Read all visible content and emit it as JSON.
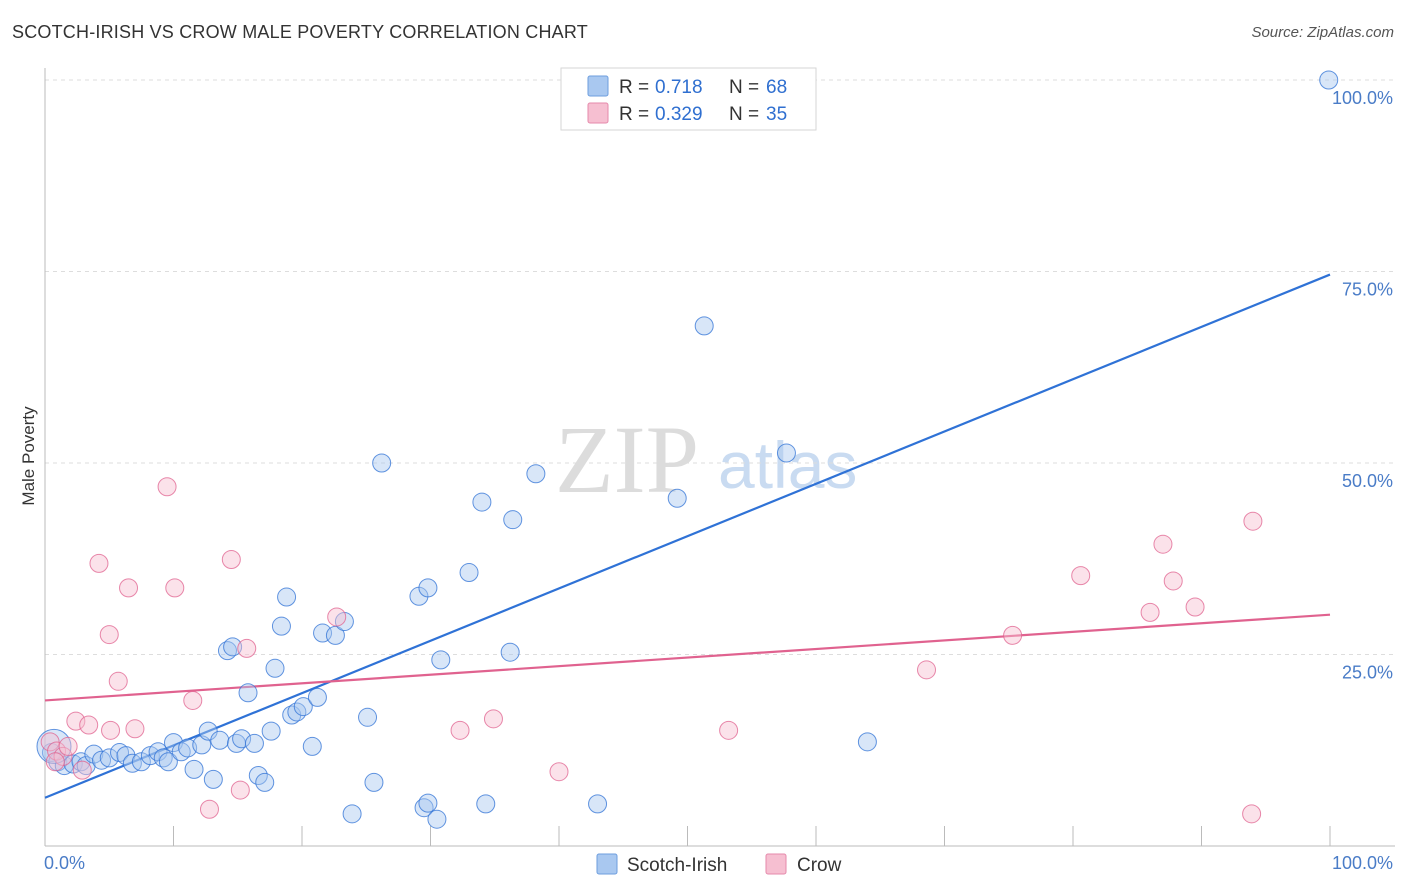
{
  "header": {
    "title": "SCOTCH-IRISH VS CROW MALE POVERTY CORRELATION CHART",
    "source": "Source: ZipAtlas.com"
  },
  "watermark": {
    "zip": "ZIP",
    "atlas": "atlas"
  },
  "legend": {
    "r_label": "R =",
    "n_label": "N =",
    "series": [
      {
        "name": "Scotch-Irish",
        "r": "0.718",
        "n": "68"
      },
      {
        "name": "Crow",
        "r": "0.329",
        "n": "35"
      }
    ]
  },
  "chart_data": {
    "type": "scatter",
    "title": "SCOTCH-IRISH VS CROW MALE POVERTY CORRELATION CHART",
    "xlabel": "",
    "ylabel": "Male Poverty",
    "xlim": [
      0,
      100
    ],
    "ylim": [
      0,
      100
    ],
    "x_tick_labels": [
      "0.0%",
      "100.0%"
    ],
    "y_ticks": [
      {
        "value": 25,
        "label": "25.0%"
      },
      {
        "value": 50,
        "label": "50.0%"
      },
      {
        "value": 75,
        "label": "75.0%"
      },
      {
        "value": 100,
        "label": "100.0%"
      }
    ],
    "grid": true,
    "legend_position": "top-center",
    "series": [
      {
        "name": "Scotch-Irish",
        "color": "#2f72d6",
        "fill": "#a9c8f0",
        "trend": {
          "x": [
            0,
            100
          ],
          "y": [
            6.3,
            74.6
          ]
        },
        "points": [
          [
            0.5,
            12.2
          ],
          [
            1.0,
            11.0
          ],
          [
            1.5,
            10.5
          ],
          [
            2.2,
            10.7
          ],
          [
            2.8,
            11.0
          ],
          [
            3.2,
            10.5
          ],
          [
            3.8,
            12.0
          ],
          [
            4.4,
            11.2
          ],
          [
            5.0,
            11.5
          ],
          [
            5.8,
            12.2
          ],
          [
            6.3,
            11.8
          ],
          [
            6.8,
            10.8
          ],
          [
            7.5,
            11.0
          ],
          [
            8.2,
            11.8
          ],
          [
            8.8,
            12.3
          ],
          [
            9.2,
            11.5
          ],
          [
            9.6,
            11.0
          ],
          [
            10.0,
            13.5
          ],
          [
            10.6,
            12.3
          ],
          [
            11.1,
            12.8
          ],
          [
            11.6,
            10.0
          ],
          [
            12.2,
            13.2
          ],
          [
            12.7,
            15.0
          ],
          [
            13.1,
            8.7
          ],
          [
            13.6,
            13.8
          ],
          [
            14.2,
            25.5
          ],
          [
            14.6,
            26.0
          ],
          [
            14.9,
            13.4
          ],
          [
            15.3,
            14.0
          ],
          [
            15.8,
            20.0
          ],
          [
            16.3,
            13.4
          ],
          [
            16.6,
            9.2
          ],
          [
            17.1,
            8.3
          ],
          [
            17.6,
            15.0
          ],
          [
            17.9,
            23.2
          ],
          [
            18.4,
            28.7
          ],
          [
            18.8,
            32.5
          ],
          [
            19.2,
            17.1
          ],
          [
            19.6,
            17.5
          ],
          [
            20.1,
            18.2
          ],
          [
            20.8,
            13.0
          ],
          [
            21.2,
            19.4
          ],
          [
            21.6,
            27.8
          ],
          [
            22.6,
            27.5
          ],
          [
            23.3,
            29.3
          ],
          [
            23.9,
            4.2
          ],
          [
            25.1,
            16.8
          ],
          [
            25.6,
            8.3
          ],
          [
            26.2,
            50.0
          ],
          [
            29.1,
            32.6
          ],
          [
            29.8,
            33.7
          ],
          [
            29.5,
            5.0
          ],
          [
            29.8,
            5.6
          ],
          [
            30.5,
            3.5
          ],
          [
            30.8,
            24.3
          ],
          [
            33.0,
            35.7
          ],
          [
            34.0,
            44.9
          ],
          [
            34.3,
            5.5
          ],
          [
            36.2,
            25.3
          ],
          [
            36.4,
            42.6
          ],
          [
            38.2,
            48.6
          ],
          [
            43.0,
            5.5
          ],
          [
            49.2,
            45.4
          ],
          [
            51.3,
            67.9
          ],
          [
            57.7,
            51.3
          ],
          [
            64.0,
            13.6
          ],
          [
            0.7,
            13.0
          ],
          [
            99.9,
            100.0
          ]
        ]
      },
      {
        "name": "Crow",
        "color": "#e0628f",
        "fill": "#f6bfd1",
        "trend": {
          "x": [
            0,
            100
          ],
          "y": [
            19.0,
            30.2
          ]
        },
        "points": [
          [
            0.4,
            13.6
          ],
          [
            0.9,
            12.4
          ],
          [
            1.4,
            11.7
          ],
          [
            1.8,
            13.0
          ],
          [
            2.4,
            16.3
          ],
          [
            2.9,
            9.9
          ],
          [
            3.4,
            15.8
          ],
          [
            4.2,
            36.9
          ],
          [
            5.0,
            27.6
          ],
          [
            5.1,
            15.1
          ],
          [
            5.7,
            21.5
          ],
          [
            6.5,
            33.7
          ],
          [
            7.0,
            15.3
          ],
          [
            9.5,
            46.9
          ],
          [
            10.1,
            33.7
          ],
          [
            11.5,
            19.0
          ],
          [
            12.8,
            4.8
          ],
          [
            14.5,
            37.4
          ],
          [
            15.2,
            7.3
          ],
          [
            15.7,
            25.8
          ],
          [
            22.7,
            29.9
          ],
          [
            32.3,
            15.1
          ],
          [
            34.9,
            16.6
          ],
          [
            40.0,
            9.7
          ],
          [
            53.2,
            15.1
          ],
          [
            68.6,
            23.0
          ],
          [
            75.3,
            27.5
          ],
          [
            80.6,
            35.3
          ],
          [
            86.0,
            30.5
          ],
          [
            87.0,
            39.4
          ],
          [
            87.8,
            34.6
          ],
          [
            89.5,
            31.2
          ],
          [
            94.0,
            42.4
          ],
          [
            93.9,
            4.2
          ],
          [
            0.8,
            11.0
          ]
        ]
      }
    ]
  }
}
